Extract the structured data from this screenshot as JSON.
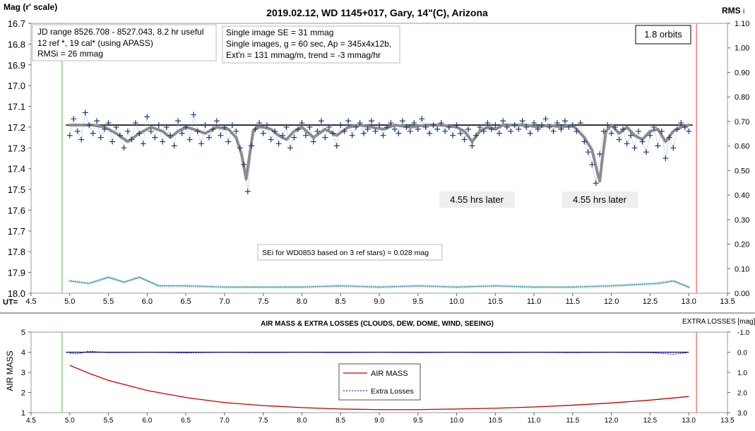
{
  "top": {
    "title": "2019.02.12, WD 1145+017, Gary, 14\"(C), Arizona",
    "ylabel_left": "Mag (r' scale)",
    "ylabel_right": "RMS",
    "ylabel_right_suffix": "i",
    "x_prefix": "UT=",
    "info_box_1": [
      "JD range 8526.708 - 8527.043, 8.2 hr useful",
      "12 ref *, 19 cal* (using APASS)",
      "RMSi = 26 mmag"
    ],
    "info_box_2": [
      "Single image SE = 31 mmag",
      "Single images, g = 60 sec, Ap = 345x4x12b,",
      "Ext'n = 131 mmag/m, trend = -3 mmag/hr"
    ],
    "orbits_label": "1.8 orbits",
    "later_label_1": "4.55 hrs later",
    "later_label_2": "4.55 hrs later",
    "sei_note": "SEi for WD0853 based on 3 ref stars) = 0.028 mag",
    "x_ticks": [
      "4.5",
      "5.0",
      "5.5",
      "6.0",
      "6.5",
      "7.0",
      "7.5",
      "8.0",
      "8.5",
      "9.0",
      "9.5",
      "10.0",
      "10.5",
      "11.0",
      "11.5",
      "12.0",
      "12.5",
      "13.0",
      "13.5"
    ],
    "y_ticks_left": [
      "16.7",
      "16.8",
      "16.9",
      "17.0",
      "17.1",
      "17.2",
      "17.3",
      "17.4",
      "17.5",
      "17.6",
      "17.7",
      "17.8",
      "17.9",
      "18.0"
    ],
    "y_ticks_right": [
      "1.10",
      "1.00",
      "0.90",
      "0.80",
      "0.70",
      "0.60",
      "0.50",
      "0.40",
      "0.30",
      "0.20",
      "0.10",
      "0.00"
    ]
  },
  "bottom": {
    "title": "AIR MASS & EXTRA LOSSES (CLOUDS, DEW, DOME, WIND, SEEING)",
    "ylabel_left": "AIR MASS",
    "ylabel_right": "EXTRA LOSSES [mag]",
    "legend_airmass": "AIR MASS",
    "legend_losses": "Extra Losses",
    "x_ticks": [
      "4.5",
      "5.0",
      "5.5",
      "6.0",
      "6.5",
      "7.0",
      "7.5",
      "8.0",
      "8.5",
      "9.0",
      "9.5",
      "10.0",
      "10.5",
      "11.0",
      "11.5",
      "12.0",
      "12.5",
      "13.0",
      "13.5"
    ],
    "y_ticks_left": [
      "5",
      "4",
      "3",
      "2",
      "1"
    ],
    "y_ticks_right": [
      "-1.0",
      "0.0",
      "1.0",
      "2.0",
      "3.0"
    ]
  },
  "chart_data": [
    {
      "type": "scatter",
      "title": "2019.02.12, WD 1145+017, Gary, 14\"(C), Arizona",
      "xlabel": "UT",
      "ylabel": "Mag (r' scale)",
      "xlim": [
        4.5,
        13.5
      ],
      "ylim": [
        18.0,
        16.7
      ],
      "y2lim": [
        0.0,
        1.1
      ],
      "colors": {
        "data": "#1f3a7a",
        "model": "#8c8c8c",
        "rms": "#5aa5b0",
        "trend": "#333333",
        "start_line": "#8fd37f",
        "end_line": "#f08080"
      },
      "vlines": [
        4.9,
        13.1
      ],
      "series": [
        {
          "name": "",
          "kind": "reference",
          "x": [
            4.95,
            13.05
          ],
          "y": [
            17.19,
            17.19
          ]
        },
        {
          "name": "",
          "kind": "model",
          "x": [
            5.0,
            5.3,
            5.45,
            5.6,
            5.75,
            5.9,
            6.05,
            6.2,
            6.3,
            6.4,
            6.5,
            6.6,
            6.75,
            6.9,
            7.05,
            7.15,
            7.22,
            7.28,
            7.33,
            7.37,
            7.42,
            7.5,
            7.6,
            7.7,
            7.8,
            7.9,
            8.0,
            8.15,
            8.3,
            8.45,
            8.6,
            8.75,
            8.9,
            9.05,
            9.2,
            9.4,
            9.6,
            9.8,
            10.0,
            10.1,
            10.2,
            10.3,
            10.4,
            10.5,
            10.6,
            10.75,
            10.9,
            11.05,
            11.2,
            11.35,
            11.5,
            11.65,
            11.75,
            11.82,
            11.85,
            11.88,
            11.93,
            12.0,
            12.1,
            12.2,
            12.3,
            12.4,
            12.5,
            12.6,
            12.7,
            12.8,
            12.9,
            13.0
          ],
          "y": [
            17.19,
            17.19,
            17.2,
            17.23,
            17.27,
            17.23,
            17.2,
            17.22,
            17.25,
            17.22,
            17.2,
            17.21,
            17.23,
            17.2,
            17.21,
            17.25,
            17.33,
            17.45,
            17.32,
            17.22,
            17.2,
            17.2,
            17.21,
            17.24,
            17.26,
            17.22,
            17.2,
            17.25,
            17.21,
            17.24,
            17.2,
            17.19,
            17.2,
            17.21,
            17.19,
            17.2,
            17.19,
            17.19,
            17.2,
            17.22,
            17.27,
            17.22,
            17.2,
            17.21,
            17.19,
            17.19,
            17.19,
            17.2,
            17.19,
            17.2,
            17.19,
            17.25,
            17.31,
            17.42,
            17.46,
            17.36,
            17.22,
            17.19,
            17.23,
            17.2,
            17.24,
            17.26,
            17.22,
            17.21,
            17.27,
            17.22,
            17.2,
            17.19
          ]
        },
        {
          "name": "",
          "kind": "observations",
          "x": [
            5.0,
            5.05,
            5.1,
            5.15,
            5.2,
            5.25,
            5.3,
            5.35,
            5.4,
            5.45,
            5.5,
            5.55,
            5.6,
            5.65,
            5.7,
            5.75,
            5.8,
            5.85,
            5.9,
            5.95,
            6.0,
            6.05,
            6.1,
            6.15,
            6.2,
            6.25,
            6.3,
            6.35,
            6.4,
            6.45,
            6.5,
            6.55,
            6.6,
            6.65,
            6.7,
            6.75,
            6.8,
            6.85,
            6.9,
            6.95,
            7.0,
            7.05,
            7.1,
            7.15,
            7.2,
            7.25,
            7.3,
            7.35,
            7.4,
            7.45,
            7.5,
            7.55,
            7.6,
            7.65,
            7.7,
            7.75,
            7.8,
            7.85,
            7.9,
            7.95,
            8.0,
            8.05,
            8.1,
            8.15,
            8.2,
            8.25,
            8.3,
            8.35,
            8.4,
            8.45,
            8.5,
            8.55,
            8.6,
            8.65,
            8.7,
            8.75,
            8.8,
            8.85,
            8.9,
            8.95,
            9.0,
            9.05,
            9.1,
            9.15,
            9.2,
            9.25,
            9.3,
            9.35,
            9.4,
            9.45,
            9.5,
            9.55,
            9.6,
            9.65,
            9.7,
            9.75,
            9.8,
            9.85,
            9.9,
            9.95,
            10.0,
            10.05,
            10.1,
            10.15,
            10.2,
            10.25,
            10.3,
            10.35,
            10.4,
            10.45,
            10.5,
            10.55,
            10.6,
            10.65,
            10.7,
            10.75,
            10.8,
            10.85,
            10.9,
            10.95,
            11.0,
            11.05,
            11.1,
            11.15,
            11.2,
            11.25,
            11.3,
            11.35,
            11.4,
            11.45,
            11.5,
            11.55,
            11.6,
            11.65,
            11.7,
            11.75,
            11.8,
            11.85,
            11.9,
            11.95,
            12.0,
            12.05,
            12.1,
            12.15,
            12.2,
            12.25,
            12.3,
            12.35,
            12.4,
            12.45,
            12.5,
            12.55,
            12.6,
            12.65,
            12.7,
            12.75,
            12.8,
            12.85,
            12.9,
            12.95,
            13.0
          ],
          "y": [
            17.24,
            17.16,
            17.22,
            17.26,
            17.13,
            17.19,
            17.23,
            17.17,
            17.25,
            17.21,
            17.18,
            17.27,
            17.2,
            17.24,
            17.3,
            17.22,
            17.26,
            17.18,
            17.23,
            17.28,
            17.15,
            17.22,
            17.25,
            17.19,
            17.27,
            17.2,
            17.24,
            17.29,
            17.17,
            17.23,
            17.2,
            17.26,
            17.14,
            17.22,
            17.28,
            17.19,
            17.25,
            17.21,
            17.17,
            17.24,
            17.2,
            17.27,
            17.19,
            17.22,
            17.3,
            17.38,
            17.51,
            17.29,
            17.21,
            17.18,
            17.23,
            17.19,
            17.26,
            17.22,
            17.28,
            17.24,
            17.2,
            17.3,
            17.25,
            17.21,
            17.18,
            17.24,
            17.2,
            17.27,
            17.22,
            17.17,
            17.25,
            17.2,
            17.23,
            17.29,
            17.19,
            17.22,
            17.17,
            17.24,
            17.2,
            17.18,
            17.23,
            17.21,
            17.17,
            17.22,
            17.19,
            17.24,
            17.2,
            17.18,
            17.21,
            17.23,
            17.17,
            17.2,
            17.22,
            17.18,
            17.21,
            17.16,
            17.2,
            17.23,
            17.19,
            17.21,
            17.18,
            17.22,
            17.2,
            17.24,
            17.19,
            17.23,
            17.26,
            17.21,
            17.29,
            17.24,
            17.2,
            17.22,
            17.18,
            17.21,
            17.19,
            17.23,
            17.17,
            17.2,
            17.22,
            17.19,
            17.21,
            17.17,
            17.2,
            17.23,
            17.18,
            17.21,
            17.19,
            17.16,
            17.2,
            17.22,
            17.18,
            17.21,
            17.17,
            17.2,
            17.19,
            17.22,
            17.18,
            17.27,
            17.32,
            17.38,
            17.47,
            17.33,
            17.22,
            17.19,
            17.23,
            17.2,
            17.26,
            17.21,
            17.28,
            17.24,
            17.3,
            17.22,
            17.27,
            17.32,
            17.24,
            17.2,
            17.29,
            17.22,
            17.35,
            17.25,
            17.3,
            17.21,
            17.18,
            17.2,
            17.22
          ]
        },
        {
          "name": "",
          "kind": "rms",
          "axis": "right",
          "x": [
            5.0,
            5.25,
            5.5,
            5.7,
            5.9,
            6.15,
            6.5,
            7.0,
            7.5,
            8.0,
            8.5,
            9.0,
            9.5,
            10.0,
            10.5,
            11.0,
            11.5,
            12.0,
            12.3,
            12.6,
            12.8,
            13.0
          ],
          "y": [
            0.05,
            0.04,
            0.065,
            0.045,
            0.065,
            0.03,
            0.03,
            0.025,
            0.025,
            0.025,
            0.03,
            0.025,
            0.03,
            0.025,
            0.03,
            0.025,
            0.025,
            0.03,
            0.035,
            0.04,
            0.05,
            0.025
          ]
        }
      ],
      "annotations": [
        "1.8 orbits",
        "4.55 hrs later",
        "4.55 hrs later",
        "SEi for WD0853 based on 3 ref stars) = 0.028 mag"
      ]
    },
    {
      "type": "line",
      "title": "AIR MASS & EXTRA LOSSES (CLOUDS, DEW, DOME, WIND, SEEING)",
      "xlabel": "",
      "ylabel": "AIR MASS",
      "y2label": "EXTRA LOSSES [mag]",
      "xlim": [
        4.5,
        13.5
      ],
      "ylim": [
        1,
        5
      ],
      "y2lim": [
        -1.0,
        3.0
      ],
      "legend": "center-left",
      "colors": {
        "airmass": "#c00000",
        "losses": "#00008b",
        "start_line": "#8fd37f",
        "end_line": "#f08080"
      },
      "vlines": [
        4.9,
        13.1
      ],
      "series": [
        {
          "name": "AIR MASS",
          "x": [
            5.0,
            5.25,
            5.5,
            5.75,
            6.0,
            6.5,
            7.0,
            7.5,
            8.0,
            8.5,
            9.0,
            9.5,
            10.0,
            10.5,
            11.0,
            11.5,
            12.0,
            12.5,
            13.0
          ],
          "y": [
            3.35,
            2.95,
            2.6,
            2.35,
            2.1,
            1.75,
            1.5,
            1.35,
            1.25,
            1.18,
            1.15,
            1.15,
            1.18,
            1.22,
            1.28,
            1.37,
            1.48,
            1.62,
            1.8
          ]
        },
        {
          "name": "Extra Losses",
          "x": [
            5.0,
            5.1,
            5.25,
            5.5,
            6.0,
            6.5,
            7.0,
            7.5,
            8.0,
            8.5,
            9.0,
            9.5,
            10.0,
            10.5,
            11.0,
            11.5,
            12.0,
            12.5,
            12.8,
            13.0
          ],
          "y": [
            0.05,
            0.08,
            -0.05,
            0.02,
            0.0,
            0.03,
            0.0,
            0.02,
            0.0,
            0.02,
            0.0,
            0.02,
            0.0,
            0.02,
            0.0,
            0.02,
            0.0,
            0.02,
            0.1,
            0.02
          ]
        }
      ]
    }
  ]
}
